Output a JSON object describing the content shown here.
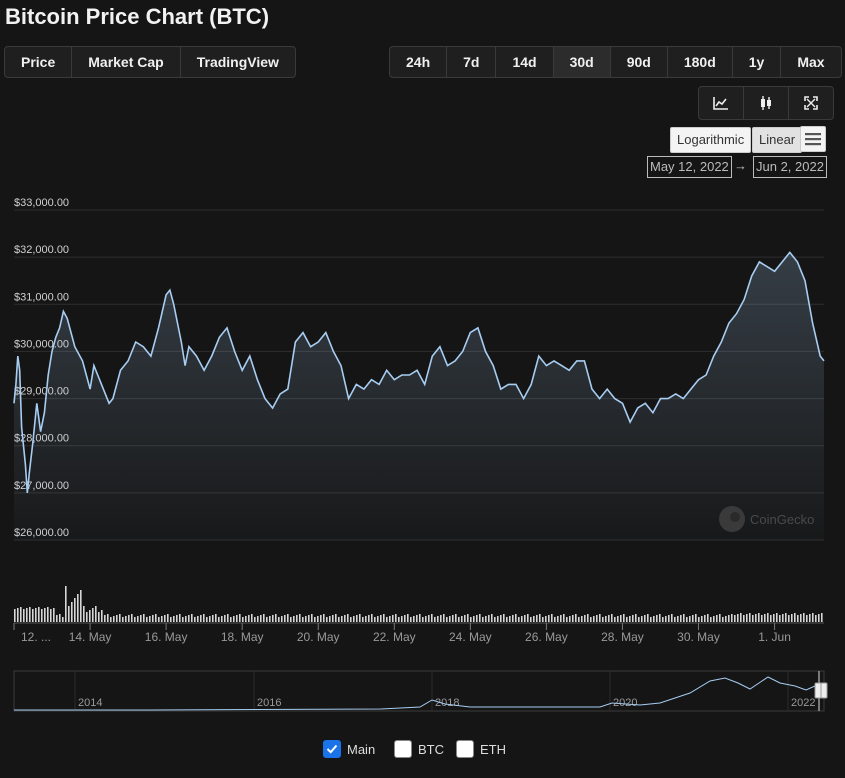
{
  "title": "Bitcoin Price Chart (BTC)",
  "metric_tabs": [
    {
      "label": "Price",
      "active": true
    },
    {
      "label": "Market Cap",
      "active": false
    },
    {
      "label": "TradingView",
      "active": false
    }
  ],
  "range_tabs": [
    {
      "label": "24h",
      "active": false
    },
    {
      "label": "7d",
      "active": false
    },
    {
      "label": "14d",
      "active": false
    },
    {
      "label": "30d",
      "active": true
    },
    {
      "label": "90d",
      "active": false
    },
    {
      "label": "180d",
      "active": false
    },
    {
      "label": "1y",
      "active": false
    },
    {
      "label": "Max",
      "active": false
    }
  ],
  "chart_icons": [
    "line-chart-icon",
    "candlestick-icon",
    "fullscreen-icon"
  ],
  "scale": {
    "logarithmic": "Logarithmic",
    "linear": "Linear",
    "active": "Linear"
  },
  "date_range": {
    "from": "May 12, 2022",
    "to": "Jun 2, 2022",
    "arrow": "→"
  },
  "watermark": "CoinGecko",
  "colors": {
    "line": "#a7cdf2",
    "background": "#151515",
    "grid": "#2e2e2e",
    "checked": "#1a73e8"
  },
  "chart_data": {
    "type": "line",
    "title": "",
    "xlabel": "",
    "ylabel": "",
    "ylim": [
      26000,
      33000
    ],
    "y_ticks": [
      "$26,000.00",
      "$27,000.00",
      "$28,000.00",
      "$29,000.00",
      "$30,000.00",
      "$31,000.00",
      "$32,000.00",
      "$33,000.00"
    ],
    "y_tick_values": [
      26000,
      27000,
      28000,
      29000,
      30000,
      31000,
      32000,
      33000
    ],
    "x_ticks": [
      "12. ...",
      "14. May",
      "16. May",
      "18. May",
      "20. May",
      "22. May",
      "24. May",
      "26. May",
      "28. May",
      "30. May",
      "1. Jun"
    ],
    "x_tick_positions": [
      12,
      14,
      16,
      18,
      20,
      22,
      24,
      26,
      28,
      30,
      32
    ],
    "xlim": [
      12,
      33.3
    ],
    "series": [
      {
        "x": [
          12.0,
          12.05,
          12.1,
          12.15,
          12.2,
          12.3,
          12.35,
          12.4,
          12.5,
          12.6,
          12.7,
          12.8,
          12.9,
          13.0,
          13.1,
          13.2,
          13.3,
          13.4,
          13.6,
          13.8,
          14.0,
          14.1,
          14.2,
          14.3,
          14.4,
          14.5,
          14.6,
          14.8,
          15.0,
          15.2,
          15.4,
          15.6,
          15.8,
          16.0,
          16.1,
          16.2,
          16.3,
          16.4,
          16.5,
          16.6,
          16.8,
          17.0,
          17.2,
          17.4,
          17.6,
          17.8,
          18.0,
          18.2,
          18.4,
          18.6,
          18.8,
          19.0,
          19.2,
          19.4,
          19.6,
          19.8,
          20.0,
          20.2,
          20.4,
          20.6,
          20.8,
          21.0,
          21.2,
          21.4,
          21.6,
          21.8,
          22.0,
          22.2,
          22.4,
          22.6,
          22.8,
          23.0,
          23.2,
          23.4,
          23.6,
          23.8,
          24.0,
          24.2,
          24.4,
          24.6,
          24.8,
          25.0,
          25.2,
          25.4,
          25.6,
          25.8,
          26.0,
          26.2,
          26.4,
          26.6,
          26.8,
          27.0,
          27.2,
          27.4,
          27.6,
          27.8,
          28.0,
          28.2,
          28.4,
          28.6,
          28.8,
          29.0,
          29.2,
          29.4,
          29.6,
          29.8,
          30.0,
          30.2,
          30.4,
          30.6,
          30.8,
          31.0,
          31.2,
          31.4,
          31.6,
          31.8,
          32.0,
          32.2,
          32.4,
          32.6,
          32.8,
          33.0,
          33.2,
          33.3
        ],
        "y": [
          28900,
          29300,
          29900,
          29600,
          28400,
          27600,
          27000,
          27400,
          28100,
          28900,
          28300,
          28700,
          29500,
          30000,
          30300,
          30500,
          30850,
          30700,
          30100,
          29800,
          29200,
          29700,
          29500,
          29300,
          29100,
          28900,
          29000,
          29600,
          29800,
          30200,
          30100,
          29900,
          30500,
          31200,
          31300,
          31000,
          30600,
          30200,
          29700,
          30100,
          29900,
          29600,
          29900,
          30300,
          30500,
          30000,
          29600,
          29900,
          29400,
          29000,
          28800,
          29100,
          29200,
          30200,
          30400,
          30100,
          30200,
          30400,
          30000,
          29700,
          29000,
          29300,
          29200,
          29400,
          29300,
          29600,
          29400,
          29500,
          29500,
          29600,
          29300,
          29900,
          30100,
          29700,
          29800,
          30000,
          30400,
          30500,
          30000,
          29700,
          29200,
          29300,
          29300,
          29000,
          29300,
          29900,
          29700,
          29800,
          29700,
          29600,
          29800,
          29800,
          29200,
          29000,
          29200,
          29000,
          28900,
          28500,
          28800,
          28900,
          28700,
          29000,
          29000,
          29100,
          29000,
          29200,
          29400,
          29500,
          29900,
          30200,
          30600,
          30800,
          31100,
          31600,
          31900,
          31800,
          31700,
          31900,
          32100,
          31900,
          31500,
          30600,
          29900,
          29800
        ]
      }
    ]
  },
  "navigator": {
    "labels": [
      "2014",
      "2016",
      "2018",
      "2020",
      "2022"
    ]
  },
  "legend": [
    {
      "label": "Main",
      "checked": true
    },
    {
      "label": "BTC",
      "checked": false
    },
    {
      "label": "ETH",
      "checked": false
    }
  ]
}
